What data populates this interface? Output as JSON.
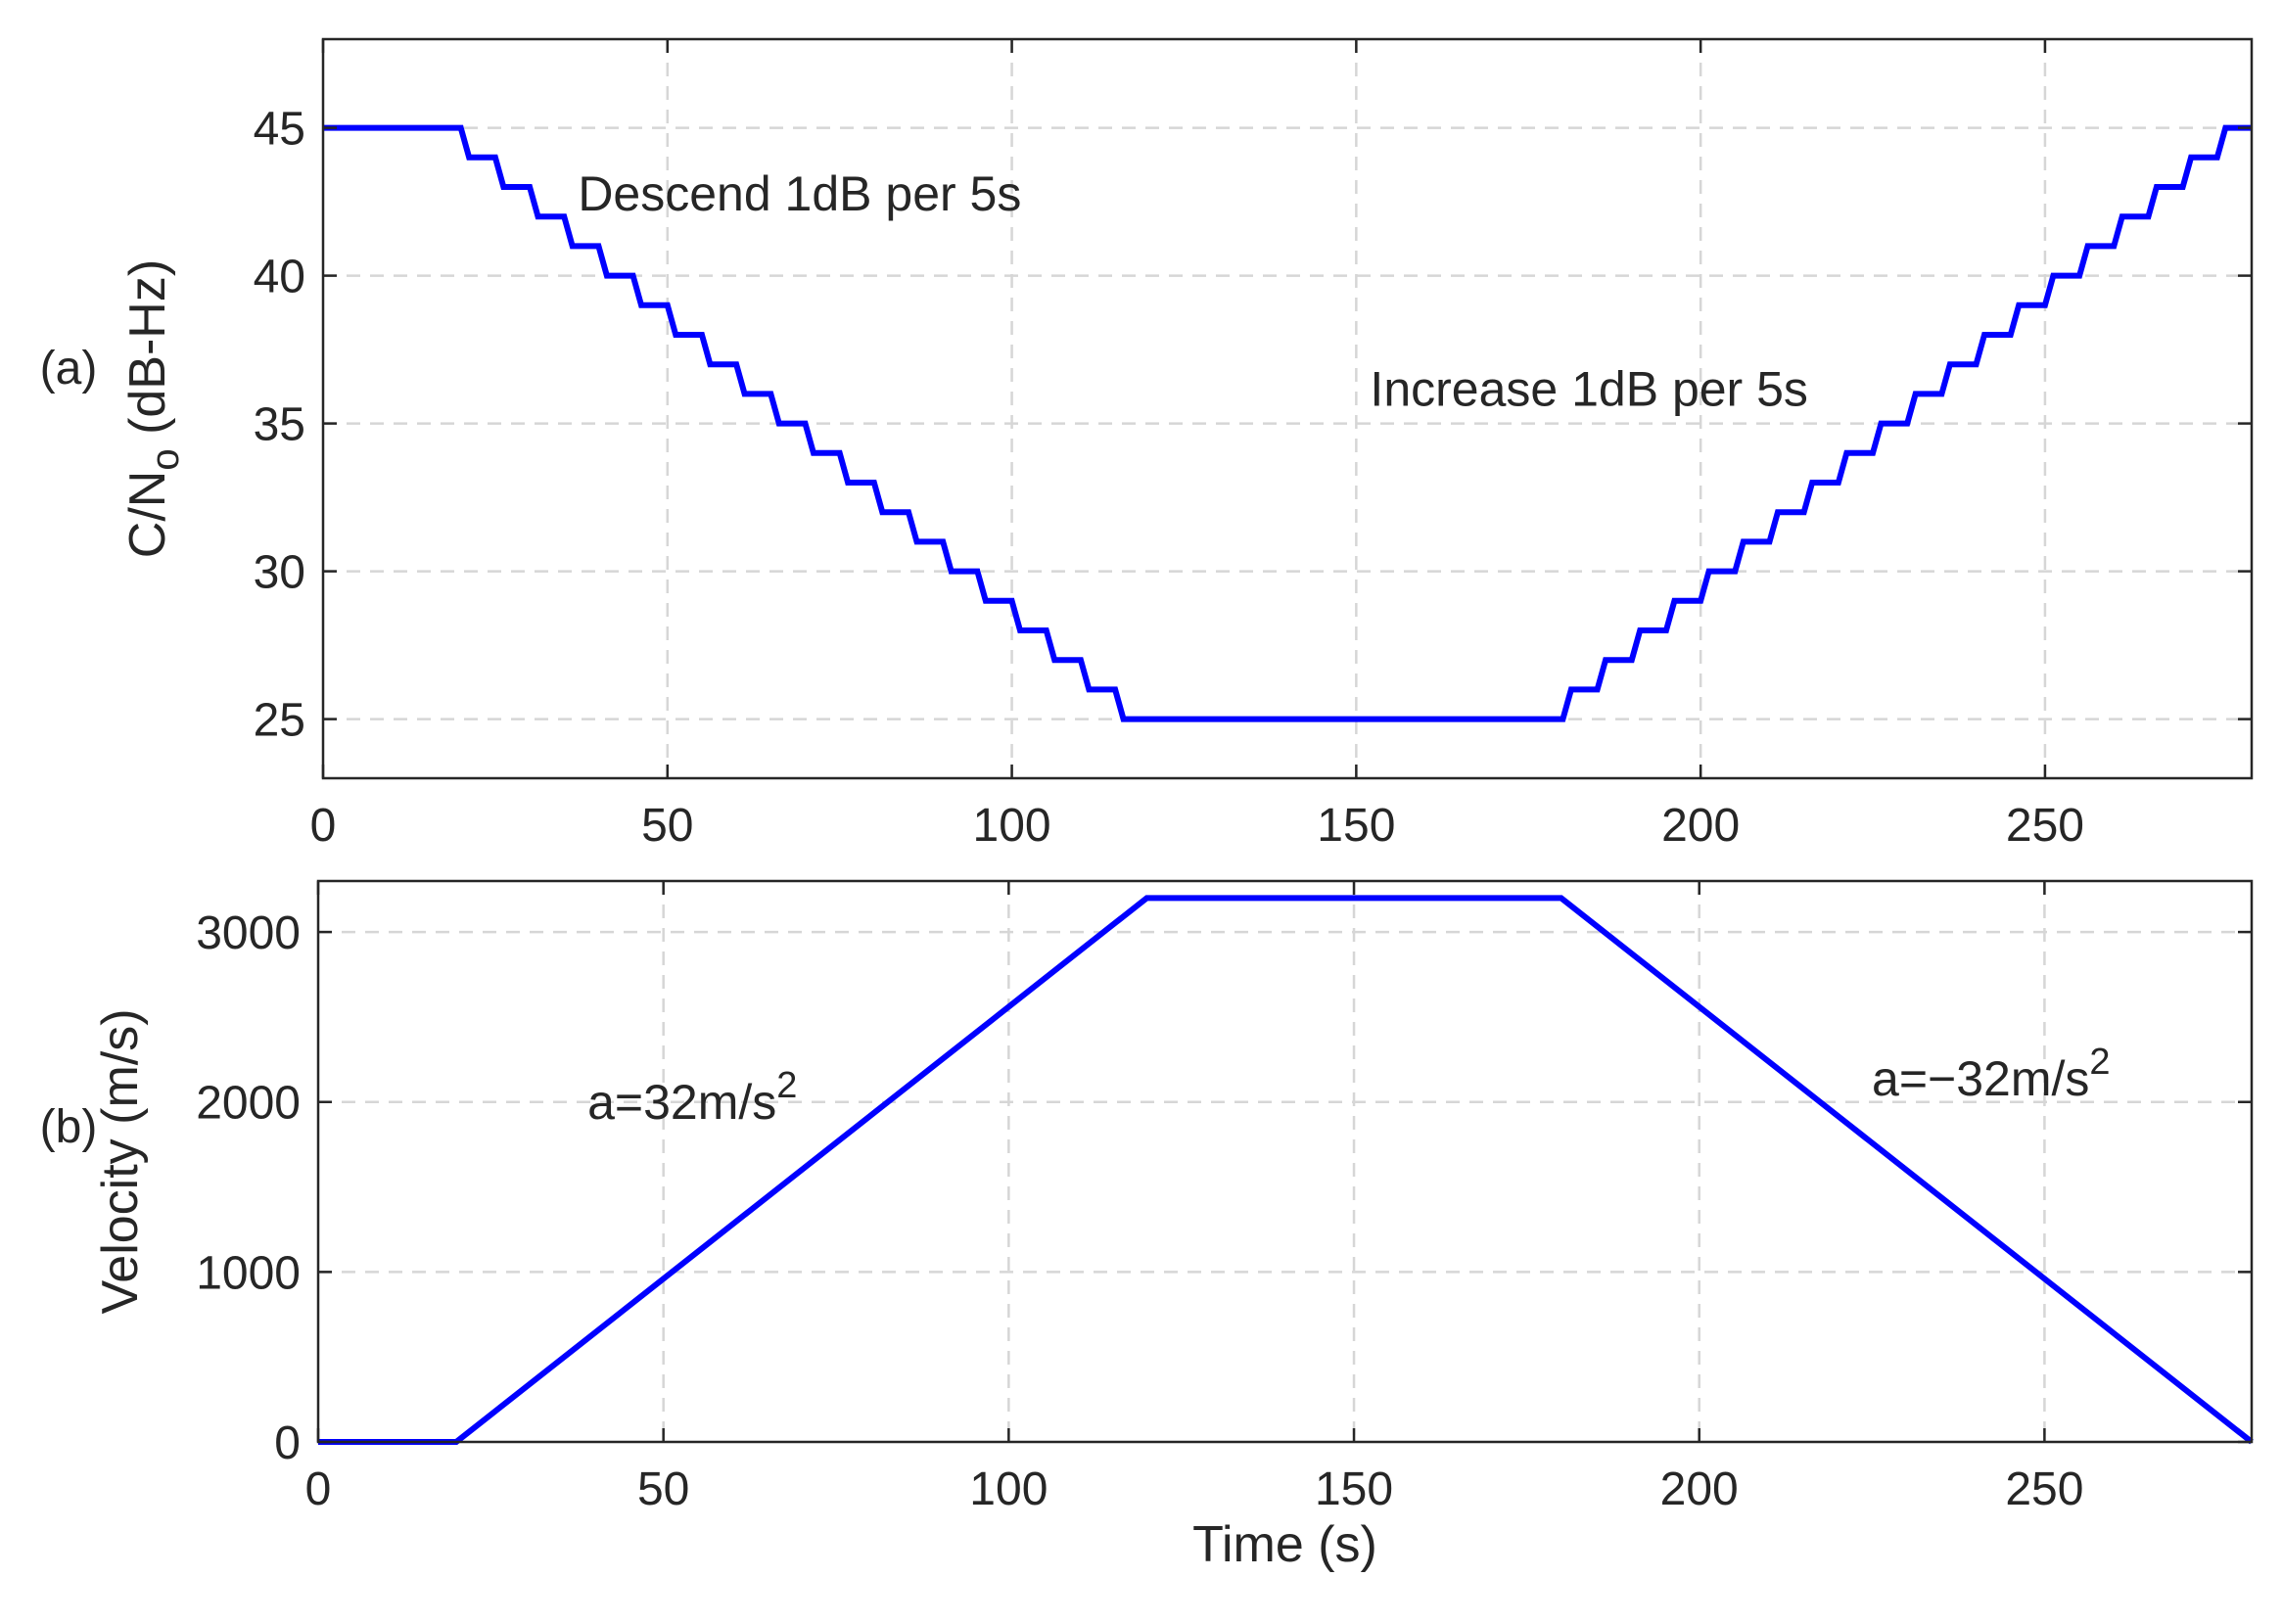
{
  "chart_data": [
    {
      "type": "line",
      "panel_label": "(a)",
      "title": "",
      "xlabel": "",
      "ylabel": "C/N",
      "ylabel_subscript": "o",
      "ylabel_unit": " (dB-Hz)",
      "xlim": [
        0,
        280
      ],
      "ylim": [
        23,
        48
      ],
      "xticks": [
        0,
        50,
        100,
        150,
        200,
        250
      ],
      "yticks": [
        25,
        30,
        35,
        40,
        45
      ],
      "grid": true,
      "series": [
        {
          "color": "#0000ff",
          "x": [
            0,
            20,
            25,
            30,
            35,
            40,
            45,
            50,
            55,
            60,
            65,
            70,
            75,
            80,
            85,
            90,
            95,
            100,
            105,
            110,
            115,
            120,
            180,
            185,
            190,
            195,
            200,
            205,
            210,
            215,
            220,
            225,
            230,
            235,
            240,
            245,
            250,
            255,
            260,
            265,
            270,
            275,
            280
          ],
          "values": [
            45,
            44,
            43,
            42,
            41,
            40,
            39,
            38,
            37,
            36,
            35,
            34,
            33,
            32,
            31,
            30,
            29,
            28,
            27,
            26,
            25,
            25,
            26,
            27,
            28,
            29,
            30,
            31,
            32,
            33,
            34,
            35,
            36,
            37,
            38,
            39,
            40,
            41,
            42,
            43,
            44,
            45,
            45
          ]
        }
      ],
      "annotations": [
        {
          "text": "Descend 1dB per 5s",
          "x": 37,
          "y": 42.2
        },
        {
          "text": "Increase 1dB per 5s",
          "x": 152,
          "y": 35.6
        }
      ]
    },
    {
      "type": "line",
      "panel_label": "(b)",
      "title": "",
      "xlabel": "Time (s)",
      "ylabel": "Velocity (m/s)",
      "xlim": [
        0,
        280
      ],
      "ylim": [
        0,
        3300
      ],
      "xticks": [
        0,
        50,
        100,
        150,
        200,
        250
      ],
      "yticks": [
        0,
        1000,
        2000,
        3000
      ],
      "grid": true,
      "series": [
        {
          "color": "#0000ff",
          "x": [
            0,
            20,
            120,
            180,
            280
          ],
          "values": [
            0,
            0,
            3200,
            3200,
            0
          ]
        }
      ],
      "annotations": [
        {
          "text": "a=32m/s",
          "sup": "2",
          "x": 39,
          "y": 1900
        },
        {
          "text": "a=−32m/s",
          "sup": "2",
          "x": 225,
          "y": 2040
        }
      ]
    }
  ]
}
